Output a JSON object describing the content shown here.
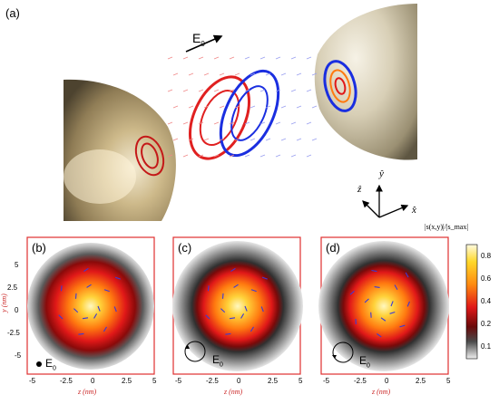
{
  "top": {
    "panel_label": "(a)",
    "field_label": "E",
    "field_subscript": "0",
    "axes": {
      "y": "ŷ",
      "z": "ẑ",
      "x": "x̂"
    }
  },
  "panels": [
    {
      "label": "(b)",
      "field_label": "E",
      "field_subscript": "0",
      "polarization": "linear"
    },
    {
      "label": "(c)",
      "field_label": "E",
      "field_subscript": "0",
      "polarization": "circular-right"
    },
    {
      "label": "(d)",
      "field_label": "E",
      "field_subscript": "0",
      "polarization": "circular-left"
    }
  ],
  "axes_common": {
    "xlabel": "z (nm)",
    "ylabel": "y (nm)",
    "xticks": [
      "-5",
      "-2.5",
      "0",
      "2.5",
      "5"
    ],
    "yticks": [
      "5",
      "2.5",
      "0",
      "-2.5",
      "-5"
    ]
  },
  "colorbar": {
    "title": "|s(x,y)|/|s_max|",
    "ticks": [
      "0.8",
      "0.6",
      "0.4",
      "0.2",
      "0.1"
    ]
  },
  "colors": {
    "frame": "#e03030",
    "axis_text": "#cc2a2a",
    "arrow_red": "#e02020",
    "arrow_blue": "#1a2ee0"
  }
}
